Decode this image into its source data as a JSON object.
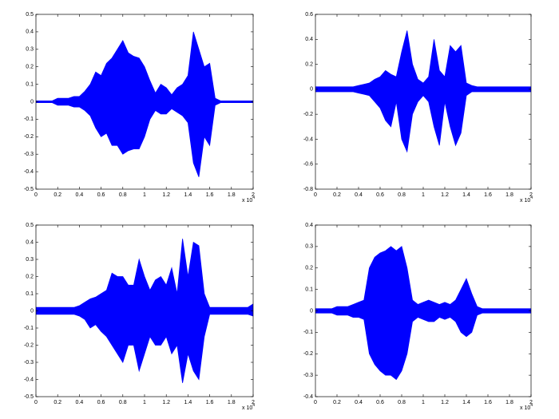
{
  "chart_data": [
    {
      "type": "band",
      "x_offset_text": "x 10",
      "x_offset_exponent": "4",
      "x": [
        0,
        0.05,
        0.1,
        0.15,
        0.2,
        0.25,
        0.3,
        0.35,
        0.4,
        0.45,
        0.5,
        0.55,
        0.6,
        0.65,
        0.7,
        0.75,
        0.8,
        0.85,
        0.9,
        0.95,
        1,
        1.05,
        1.1,
        1.15,
        1.2,
        1.25,
        1.3,
        1.35,
        1.4,
        1.45,
        1.5,
        1.55,
        1.6,
        1.65,
        1.7,
        1.75,
        1.8,
        1.85,
        1.9,
        1.95,
        2
      ],
      "series": [
        {
          "color": "#0000ff",
          "values": [
            0.005,
            0.005,
            0.005,
            0.005,
            0.02,
            0.02,
            0.02,
            0.03,
            0.03,
            0.06,
            0.1,
            0.17,
            0.15,
            0.22,
            0.25,
            0.3,
            0.35,
            0.28,
            0.26,
            0.25,
            0.2,
            0.12,
            0.05,
            0.1,
            0.08,
            0.04,
            0.08,
            0.1,
            0.15,
            0.4,
            0.3,
            0.2,
            0.22,
            0.02,
            0.005,
            0.005,
            0.005,
            0.005,
            0.005,
            0.005,
            0.005
          ]
        },
        {
          "color": "#0000ff",
          "values": [
            -0.005,
            -0.005,
            -0.005,
            -0.005,
            -0.02,
            -0.02,
            -0.02,
            -0.03,
            -0.03,
            -0.05,
            -0.08,
            -0.15,
            -0.2,
            -0.18,
            -0.25,
            -0.25,
            -0.3,
            -0.28,
            -0.27,
            -0.27,
            -0.2,
            -0.1,
            -0.05,
            -0.07,
            -0.07,
            -0.04,
            -0.06,
            -0.08,
            -0.12,
            -0.35,
            -0.43,
            -0.2,
            -0.25,
            -0.02,
            -0.005,
            -0.005,
            -0.005,
            -0.005,
            -0.005,
            -0.005,
            -0.005
          ]
        }
      ],
      "xlim": [
        0,
        2
      ],
      "xticks": [
        0,
        0.2,
        0.4,
        0.6,
        0.8,
        1,
        1.2,
        1.4,
        1.6,
        1.8,
        2
      ],
      "ylim": [
        -0.5,
        0.5
      ],
      "yticks": [
        -0.5,
        -0.4,
        -0.3,
        -0.2,
        -0.1,
        0,
        0.1,
        0.2,
        0.3,
        0.4,
        0.5
      ]
    },
    {
      "type": "band",
      "x_offset_text": "x 10",
      "x_offset_exponent": "4",
      "x": [
        0,
        0.05,
        0.1,
        0.15,
        0.2,
        0.25,
        0.3,
        0.35,
        0.4,
        0.45,
        0.5,
        0.55,
        0.6,
        0.65,
        0.7,
        0.75,
        0.8,
        0.85,
        0.9,
        0.95,
        1,
        1.05,
        1.1,
        1.15,
        1.2,
        1.25,
        1.3,
        1.35,
        1.4,
        1.45,
        1.5,
        1.55,
        1.6,
        1.65,
        1.7,
        1.75,
        1.8,
        1.85,
        1.9,
        1.95,
        2
      ],
      "series": [
        {
          "color": "#0000ff",
          "values": [
            0.02,
            0.02,
            0.02,
            0.02,
            0.02,
            0.02,
            0.02,
            0.02,
            0.03,
            0.04,
            0.05,
            0.08,
            0.1,
            0.15,
            0.12,
            0.1,
            0.3,
            0.47,
            0.2,
            0.08,
            0.05,
            0.1,
            0.4,
            0.15,
            0.1,
            0.35,
            0.3,
            0.35,
            0.05,
            0.03,
            0.02,
            0.02,
            0.02,
            0.02,
            0.02,
            0.02,
            0.02,
            0.02,
            0.02,
            0.02,
            0.02
          ]
        },
        {
          "color": "#0000ff",
          "values": [
            -0.02,
            -0.02,
            -0.02,
            -0.02,
            -0.02,
            -0.02,
            -0.02,
            -0.02,
            -0.03,
            -0.04,
            -0.05,
            -0.1,
            -0.15,
            -0.25,
            -0.3,
            -0.1,
            -0.4,
            -0.5,
            -0.2,
            -0.1,
            -0.05,
            -0.1,
            -0.3,
            -0.45,
            -0.1,
            -0.3,
            -0.45,
            -0.35,
            -0.05,
            -0.02,
            -0.02,
            -0.02,
            -0.02,
            -0.02,
            -0.02,
            -0.02,
            -0.02,
            -0.02,
            -0.02,
            -0.02,
            -0.02
          ]
        }
      ],
      "xlim": [
        0,
        2
      ],
      "xticks": [
        0,
        0.2,
        0.4,
        0.6,
        0.8,
        1,
        1.2,
        1.4,
        1.6,
        1.8,
        2
      ],
      "ylim": [
        -0.8,
        0.6
      ],
      "yticks": [
        -0.8,
        -0.6,
        -0.4,
        -0.2,
        0,
        0.2,
        0.4,
        0.6
      ]
    },
    {
      "type": "band",
      "x_offset_text": "x 10",
      "x_offset_exponent": "4",
      "x": [
        0,
        0.05,
        0.1,
        0.15,
        0.2,
        0.25,
        0.3,
        0.35,
        0.4,
        0.45,
        0.5,
        0.55,
        0.6,
        0.65,
        0.7,
        0.75,
        0.8,
        0.85,
        0.9,
        0.95,
        1,
        1.05,
        1.1,
        1.15,
        1.2,
        1.25,
        1.3,
        1.35,
        1.4,
        1.45,
        1.5,
        1.55,
        1.6,
        1.65,
        1.7,
        1.75,
        1.8,
        1.85,
        1.9,
        1.95,
        2
      ],
      "series": [
        {
          "color": "#0000ff",
          "values": [
            0.02,
            0.02,
            0.02,
            0.02,
            0.02,
            0.02,
            0.02,
            0.02,
            0.03,
            0.05,
            0.07,
            0.08,
            0.1,
            0.12,
            0.22,
            0.2,
            0.2,
            0.15,
            0.15,
            0.3,
            0.2,
            0.12,
            0.18,
            0.2,
            0.15,
            0.25,
            0.1,
            0.42,
            0.2,
            0.4,
            0.38,
            0.1,
            0.02,
            0.02,
            0.02,
            0.02,
            0.02,
            0.02,
            0.02,
            0.02,
            0.04
          ]
        },
        {
          "color": "#0000ff",
          "values": [
            -0.02,
            -0.02,
            -0.02,
            -0.02,
            -0.02,
            -0.02,
            -0.02,
            -0.02,
            -0.03,
            -0.05,
            -0.1,
            -0.08,
            -0.12,
            -0.15,
            -0.2,
            -0.25,
            -0.3,
            -0.2,
            -0.2,
            -0.35,
            -0.25,
            -0.15,
            -0.2,
            -0.2,
            -0.15,
            -0.25,
            -0.2,
            -0.42,
            -0.25,
            -0.35,
            -0.4,
            -0.15,
            -0.02,
            -0.02,
            -0.02,
            -0.02,
            -0.02,
            -0.02,
            -0.02,
            -0.02,
            -0.03
          ]
        }
      ],
      "xlim": [
        0,
        2
      ],
      "xticks": [
        0,
        0.2,
        0.4,
        0.6,
        0.8,
        1,
        1.2,
        1.4,
        1.6,
        1.8,
        2
      ],
      "ylim": [
        -0.5,
        0.5
      ],
      "yticks": [
        -0.5,
        -0.4,
        -0.3,
        -0.2,
        -0.1,
        0,
        0.1,
        0.2,
        0.3,
        0.4,
        0.5
      ]
    },
    {
      "type": "band",
      "x_offset_text": "x 10",
      "x_offset_exponent": "4",
      "x": [
        0,
        0.05,
        0.1,
        0.15,
        0.2,
        0.25,
        0.3,
        0.35,
        0.4,
        0.45,
        0.5,
        0.55,
        0.6,
        0.65,
        0.7,
        0.75,
        0.8,
        0.85,
        0.9,
        0.95,
        1,
        1.05,
        1.1,
        1.15,
        1.2,
        1.25,
        1.3,
        1.35,
        1.4,
        1.45,
        1.5,
        1.55,
        1.6,
        1.65,
        1.7,
        1.75,
        1.8,
        1.85,
        1.9,
        1.95,
        2
      ],
      "series": [
        {
          "color": "#0000ff",
          "values": [
            0.01,
            0.01,
            0.01,
            0.01,
            0.02,
            0.02,
            0.02,
            0.03,
            0.04,
            0.05,
            0.2,
            0.25,
            0.27,
            0.28,
            0.3,
            0.28,
            0.3,
            0.2,
            0.05,
            0.03,
            0.04,
            0.05,
            0.04,
            0.03,
            0.04,
            0.03,
            0.05,
            0.1,
            0.15,
            0.08,
            0.02,
            0.01,
            0.01,
            0.01,
            0.01,
            0.01,
            0.01,
            0.01,
            0.01,
            0.01,
            0.01
          ]
        },
        {
          "color": "#0000ff",
          "values": [
            -0.01,
            -0.01,
            -0.01,
            -0.01,
            -0.02,
            -0.02,
            -0.02,
            -0.03,
            -0.03,
            -0.04,
            -0.2,
            -0.25,
            -0.28,
            -0.3,
            -0.3,
            -0.32,
            -0.28,
            -0.2,
            -0.05,
            -0.03,
            -0.04,
            -0.05,
            -0.05,
            -0.03,
            -0.04,
            -0.03,
            -0.05,
            -0.1,
            -0.12,
            -0.1,
            -0.02,
            -0.01,
            -0.01,
            -0.01,
            -0.01,
            -0.01,
            -0.01,
            -0.01,
            -0.01,
            -0.01,
            -0.01
          ]
        }
      ],
      "xlim": [
        0,
        2
      ],
      "xticks": [
        0,
        0.2,
        0.4,
        0.6,
        0.8,
        1,
        1.2,
        1.4,
        1.6,
        1.8,
        2
      ],
      "ylim": [
        -0.4,
        0.4
      ],
      "yticks": [
        -0.4,
        -0.3,
        -0.2,
        -0.1,
        0,
        0.1,
        0.2,
        0.3,
        0.4
      ]
    }
  ]
}
